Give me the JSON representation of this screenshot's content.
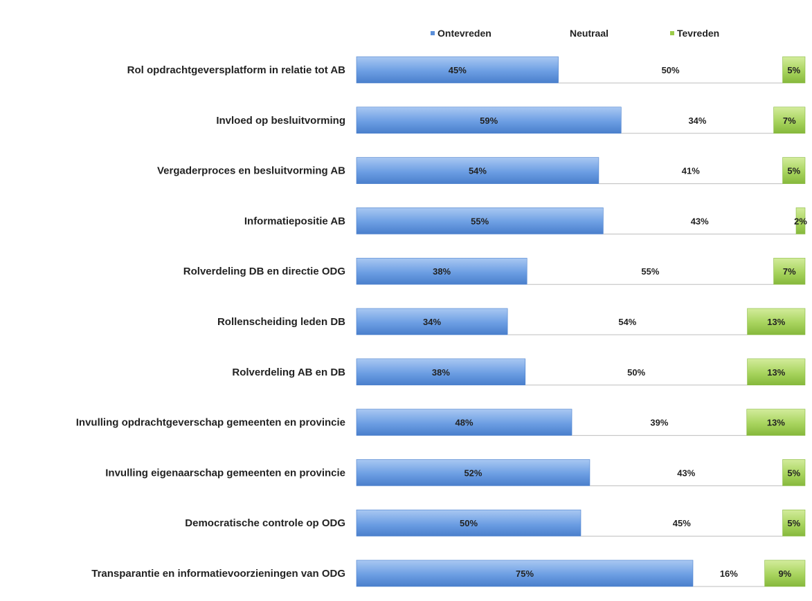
{
  "chart_data": {
    "type": "bar",
    "orientation": "horizontal",
    "stacked": true,
    "percent_stacked": true,
    "categories": [
      "Rol opdrachtgeversplatform in  relatie tot AB",
      "Invloed op besluitvorming",
      "Vergaderproces en besluitvorming AB",
      "Informatiepositie AB",
      "Rolverdeling DB en directie ODG",
      "Rollenscheiding leden DB",
      "Rolverdeling AB en DB",
      "Invulling opdrachtgeverschap gemeenten en provincie",
      "Invulling eigenaarschap gemeenten en provincie",
      "Democratische controle op ODG",
      "Transparantie en informatievoorzieningen van ODG"
    ],
    "series": [
      {
        "name": "Ontevreden",
        "color": "#5b8fd9",
        "values": [
          45,
          59,
          54,
          55,
          38,
          34,
          38,
          48,
          52,
          50,
          75
        ]
      },
      {
        "name": "Neutraal",
        "color": "#ffffff",
        "values": [
          50,
          34,
          41,
          43,
          55,
          54,
          50,
          39,
          43,
          45,
          16
        ]
      },
      {
        "name": "Tevreden",
        "color": "#9ccc4a",
        "values": [
          5,
          7,
          5,
          2,
          7,
          13,
          13,
          13,
          5,
          5,
          9
        ]
      }
    ],
    "data_labels": [
      [
        "45%",
        "50%",
        "5%"
      ],
      [
        "59%",
        "34%",
        "7%"
      ],
      [
        "54%",
        "41%",
        "5%"
      ],
      [
        "55%",
        "43%",
        "2%"
      ],
      [
        "38%",
        "55%",
        "7%"
      ],
      [
        "34%",
        "54%",
        "13%"
      ],
      [
        "38%",
        "50%",
        "13%"
      ],
      [
        "48%",
        "39%",
        "13%"
      ],
      [
        "52%",
        "43%",
        "5%"
      ],
      [
        "50%",
        "45%",
        "5%"
      ],
      [
        "75%",
        "16%",
        "9%"
      ]
    ],
    "legend_position": "top",
    "grid": false,
    "xlim": [
      0,
      100
    ]
  }
}
